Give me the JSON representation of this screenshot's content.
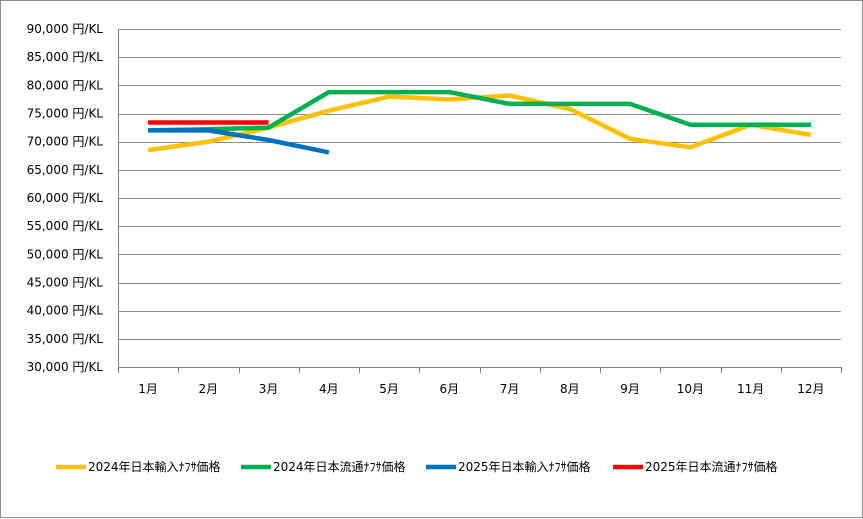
{
  "chart_data": {
    "type": "line",
    "categories": [
      "1月",
      "2月",
      "3月",
      "4月",
      "5月",
      "6月",
      "7月",
      "8月",
      "9月",
      "10月",
      "11月",
      "12月"
    ],
    "ylim": [
      30000,
      90000
    ],
    "ytick_step": 5000,
    "ytick_labels": [
      "30,000 円/KL",
      "35,000 円/KL",
      "40,000 円/KL",
      "45,000 円/KL",
      "50,000 円/KL",
      "55,000 円/KL",
      "60,000 円/KL",
      "65,000 円/KL",
      "70,000 円/KL",
      "75,000 円/KL",
      "80,000 円/KL",
      "85,000 円/KL",
      "90,000 円/KL"
    ],
    "grid": true,
    "legend_position": "bottom",
    "series": [
      {
        "name": "2024年日本輸入ﾅﾌｻ価格",
        "color": "#FFC000",
        "values": [
          68500,
          70000,
          72500,
          75500,
          78000,
          77500,
          78200,
          75800,
          70500,
          69000,
          73000,
          71200
        ]
      },
      {
        "name": "2024年日本流通ﾅﾌｻ価格",
        "color": "#00B050",
        "values": [
          72000,
          72200,
          72500,
          78800,
          78800,
          78800,
          76700,
          76700,
          76700,
          73000,
          73000,
          73000
        ]
      },
      {
        "name": "2025年日本輸入ﾅﾌｻ価格",
        "color": "#0070C0",
        "values": [
          72000,
          72000,
          70300,
          68100,
          null,
          null,
          null,
          null,
          null,
          null,
          null,
          null
        ]
      },
      {
        "name": "2025年日本流通ﾅﾌｻ価格",
        "color": "#FF0000",
        "values": [
          73400,
          73400,
          73400,
          null,
          null,
          null,
          null,
          null,
          null,
          null,
          null,
          null
        ]
      }
    ]
  }
}
